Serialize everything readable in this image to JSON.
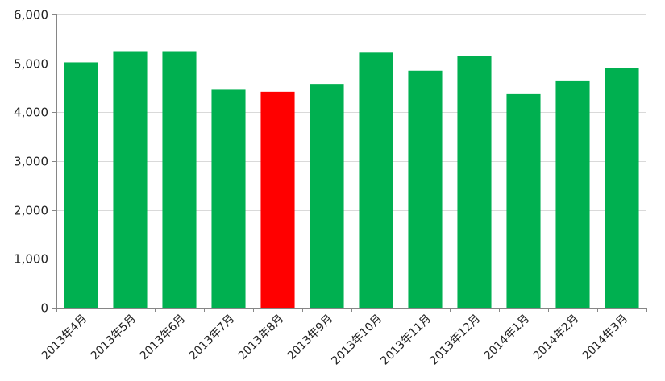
{
  "chart_data": {
    "type": "bar",
    "categories": [
      "2013年4月",
      "2013年5月",
      "2013年6月",
      "2013年7月",
      "2013年8月",
      "2013年9月",
      "2013年10月",
      "2013年11月",
      "2013年12月",
      "2014年1月",
      "2014年2月",
      "2014年3月"
    ],
    "values": [
      5020,
      5250,
      5250,
      4460,
      4420,
      4580,
      5220,
      4850,
      5150,
      4370,
      4650,
      4910
    ],
    "highlight_index": 4,
    "ylim": [
      0,
      6000
    ],
    "yticks": [
      0,
      1000,
      2000,
      3000,
      4000,
      5000,
      6000
    ],
    "ytick_labels": [
      "0",
      "1,000",
      "2,000",
      "3,000",
      "4,000",
      "5,000",
      "6,000"
    ],
    "grid": true,
    "legend": "none",
    "colors": {
      "bar": "#00b050",
      "highlight": "#ff0000",
      "grid": "#d9d9d9",
      "axis": "#868686"
    }
  }
}
